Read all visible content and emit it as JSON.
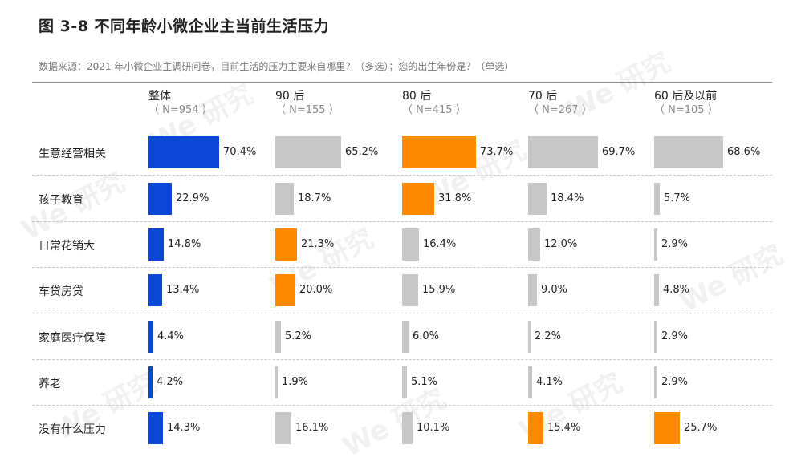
{
  "title": "图 3-8  不同年龄小微企业主当前生活压力",
  "source": "数据来源：2021 年小微企业主调研问卷，目前生活的压力主要来自哪里？（多选）；您的出生年份是？（单选）",
  "watermark": "We 研究",
  "colors": {
    "highlight_blue": "#0a47d6",
    "highlight_orange": "#ff8a00",
    "neutral": "#c7c7c7"
  },
  "chart_data": {
    "type": "bar",
    "orientation": "horizontal",
    "layout": "small-multiples",
    "categories": [
      "生意经营相关",
      "孩子教育",
      "日常花销大",
      "车贷房贷",
      "家庭医疗保障",
      "养老",
      "没有什么压力"
    ],
    "series": [
      {
        "name": "整体",
        "n_label": "（ N=954 ）",
        "color": "#0a47d6",
        "values": [
          70.4,
          22.9,
          14.8,
          13.4,
          4.4,
          4.2,
          14.3
        ],
        "labels": [
          "70.4%",
          "22.9%",
          "14.8%",
          "13.4%",
          "4.4%",
          "4.2%",
          "14.3%"
        ]
      },
      {
        "name": "90 后",
        "n_label": "（ N=155 ）",
        "colors": [
          "#c7c7c7",
          "#c7c7c7",
          "#ff8a00",
          "#ff8a00",
          "#c7c7c7",
          "#c7c7c7",
          "#c7c7c7"
        ],
        "values": [
          65.2,
          18.7,
          21.3,
          20.0,
          5.2,
          1.9,
          16.1
        ],
        "labels": [
          "65.2%",
          "18.7%",
          "21.3%",
          "20.0%",
          "5.2%",
          "1.9%",
          "16.1%"
        ]
      },
      {
        "name": "80 后",
        "n_label": "（ N=415 ）",
        "colors": [
          "#ff8a00",
          "#ff8a00",
          "#c7c7c7",
          "#c7c7c7",
          "#c7c7c7",
          "#c7c7c7",
          "#c7c7c7"
        ],
        "values": [
          73.7,
          31.8,
          16.4,
          15.9,
          6.0,
          5.1,
          10.1
        ],
        "labels": [
          "73.7%",
          "31.8%",
          "16.4%",
          "15.9%",
          "6.0%",
          "5.1%",
          "10.1%"
        ]
      },
      {
        "name": "70 后",
        "n_label": "（ N=267 ）",
        "colors": [
          "#c7c7c7",
          "#c7c7c7",
          "#c7c7c7",
          "#c7c7c7",
          "#c7c7c7",
          "#c7c7c7",
          "#ff8a00"
        ],
        "values": [
          69.7,
          18.4,
          12.0,
          9.0,
          2.2,
          4.1,
          15.4
        ],
        "labels": [
          "69.7%",
          "18.4%",
          "12.0%",
          "9.0%",
          "2.2%",
          "4.1%",
          "15.4%"
        ]
      },
      {
        "name": "60 后及以前",
        "n_label": "（ N=105 ）",
        "colors": [
          "#c7c7c7",
          "#c7c7c7",
          "#c7c7c7",
          "#c7c7c7",
          "#c7c7c7",
          "#c7c7c7",
          "#ff8a00"
        ],
        "values": [
          68.6,
          5.7,
          2.9,
          4.8,
          2.9,
          2.9,
          25.7
        ],
        "labels": [
          "68.6%",
          "5.7%",
          "2.9%",
          "4.8%",
          "2.9%",
          "2.9%",
          "25.7%"
        ]
      }
    ],
    "xlim": [
      0,
      100
    ],
    "unit": "%"
  }
}
